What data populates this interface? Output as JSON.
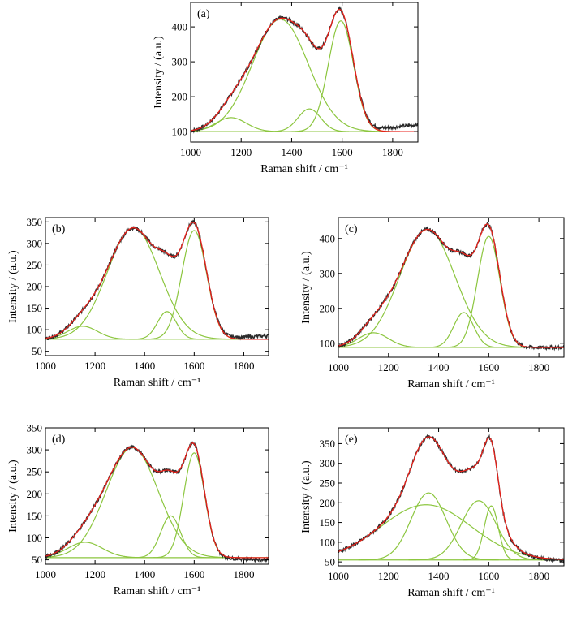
{
  "colors": {
    "raw": "#2b2b2b",
    "fit": "#e8211b",
    "component": "#8cc63f",
    "axis": "#000000"
  },
  "panels": [
    {
      "label": "(a)",
      "xlabel": "Raman shift / cm⁻¹",
      "ylabel": "Intensity / (a.u.)",
      "chart_data": {
        "type": "line",
        "xlim": [
          1000,
          1900
        ],
        "ylim": [
          70,
          470
        ],
        "xticks": [
          1000,
          1200,
          1400,
          1600,
          1800
        ],
        "yticks": [
          100,
          200,
          300,
          400
        ],
        "baseline": 100,
        "raw_end": 120,
        "components": [
          {
            "center": 1160,
            "height": 40,
            "width": 60
          },
          {
            "center": 1355,
            "height": 322,
            "width": 110
          },
          {
            "center": 1470,
            "height": 65,
            "width": 45
          },
          {
            "center": 1595,
            "height": 317,
            "width": 50
          }
        ]
      }
    },
    {
      "label": "(b)",
      "xlabel": "Raman shift / cm⁻¹",
      "ylabel": "Intensity / (a.u.)",
      "chart_data": {
        "type": "line",
        "xlim": [
          1000,
          1900
        ],
        "ylim": [
          40,
          360
        ],
        "xticks": [
          1000,
          1200,
          1400,
          1600,
          1800
        ],
        "yticks": [
          50,
          100,
          150,
          200,
          250,
          300,
          350
        ],
        "baseline": 78,
        "raw_end": 86,
        "components": [
          {
            "center": 1150,
            "height": 30,
            "width": 60
          },
          {
            "center": 1355,
            "height": 258,
            "width": 105
          },
          {
            "center": 1490,
            "height": 64,
            "width": 38
          },
          {
            "center": 1600,
            "height": 252,
            "width": 50
          }
        ]
      }
    },
    {
      "label": "(c)",
      "xlabel": "Raman shift / cm⁻¹",
      "ylabel": "Intensity / (a.u.)",
      "chart_data": {
        "type": "line",
        "xlim": [
          1000,
          1900
        ],
        "ylim": [
          60,
          460
        ],
        "xticks": [
          1000,
          1200,
          1400,
          1600,
          1800
        ],
        "yticks": [
          100,
          200,
          300,
          400
        ],
        "baseline": 88,
        "raw_end": 88,
        "components": [
          {
            "center": 1140,
            "height": 42,
            "width": 60
          },
          {
            "center": 1355,
            "height": 338,
            "width": 110
          },
          {
            "center": 1500,
            "height": 100,
            "width": 40
          },
          {
            "center": 1600,
            "height": 318,
            "width": 45
          }
        ]
      }
    },
    {
      "label": "(d)",
      "xlabel": "Raman shift / cm⁻¹",
      "ylabel": "Intensity / (a.u.)",
      "chart_data": {
        "type": "line",
        "xlim": [
          1000,
          1900
        ],
        "ylim": [
          40,
          350
        ],
        "xticks": [
          1000,
          1200,
          1400,
          1600,
          1800
        ],
        "yticks": [
          50,
          100,
          150,
          200,
          250,
          300,
          350
        ],
        "baseline": 55,
        "raw_end": 50,
        "components": [
          {
            "center": 1160,
            "height": 35,
            "width": 70
          },
          {
            "center": 1350,
            "height": 250,
            "width": 105
          },
          {
            "center": 1505,
            "height": 95,
            "width": 40
          },
          {
            "center": 1600,
            "height": 238,
            "width": 42
          }
        ]
      }
    },
    {
      "label": "(e)",
      "xlabel": "Raman shift / cm⁻¹",
      "ylabel": "Intensity / (a.u.)",
      "chart_data": {
        "type": "line",
        "xlim": [
          1000,
          1900
        ],
        "ylim": [
          40,
          390
        ],
        "xticks": [
          1000,
          1200,
          1400,
          1600,
          1800
        ],
        "yticks": [
          50,
          100,
          150,
          200,
          250,
          300,
          350
        ],
        "baseline": 55,
        "raw_end": 52,
        "components": [
          {
            "center": 1350,
            "height": 140,
            "width": 180
          },
          {
            "center": 1360,
            "height": 170,
            "width": 70
          },
          {
            "center": 1560,
            "height": 150,
            "width": 70
          },
          {
            "center": 1610,
            "height": 137,
            "width": 28
          }
        ]
      }
    }
  ]
}
